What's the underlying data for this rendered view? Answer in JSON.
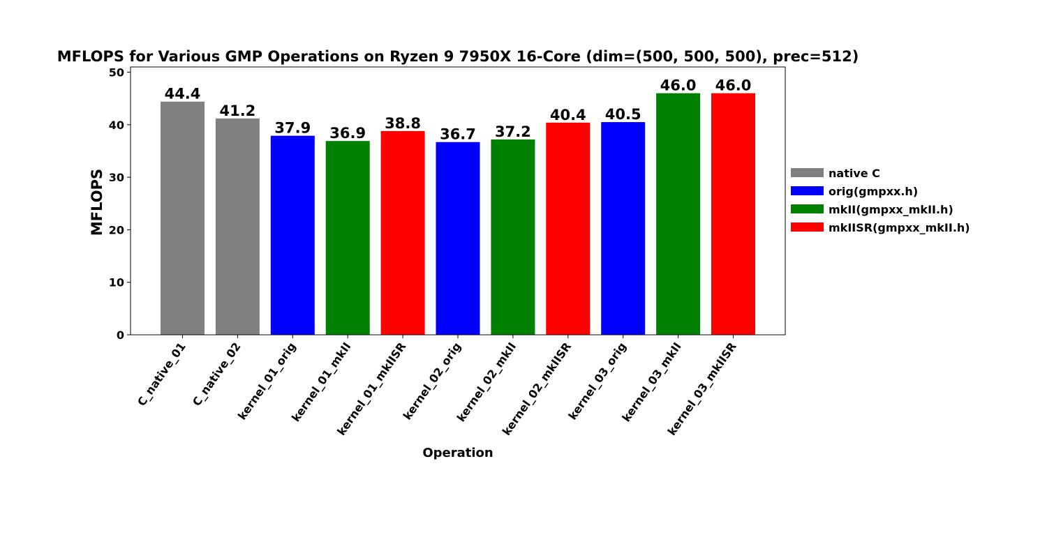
{
  "chart_data": {
    "type": "bar",
    "title": "MFLOPS for Various GMP Operations on Ryzen 9 7950X 16-Core (dim=(500, 500, 500), prec=512)",
    "xlabel": "Operation",
    "ylabel": "MFLOPS",
    "ylim": [
      0,
      51
    ],
    "yticks": [
      0,
      10,
      20,
      30,
      40,
      50
    ],
    "grid": false,
    "legend_position": "right",
    "categories": [
      "C_native_01",
      "C_native_02",
      "kernel_01_orig",
      "kernel_01_mkII",
      "kernel_01_mkIISR",
      "kernel_02_orig",
      "kernel_02_mkII",
      "kernel_02_mkIISR",
      "kernel_03_orig",
      "kernel_03_mkII",
      "kernel_03_mkIISR"
    ],
    "values": [
      44.4,
      41.2,
      37.9,
      36.9,
      38.8,
      36.7,
      37.2,
      40.4,
      40.5,
      46.0,
      46.0
    ],
    "value_labels": [
      "44.4",
      "41.2",
      "37.9",
      "36.9",
      "38.8",
      "36.7",
      "37.2",
      "40.4",
      "40.5",
      "46.0",
      "46.0"
    ],
    "bar_groups": [
      0,
      0,
      1,
      2,
      3,
      1,
      2,
      3,
      1,
      2,
      3
    ],
    "legend": [
      {
        "name": "native C",
        "color": "#808080"
      },
      {
        "name": "orig(gmpxx.h)",
        "color": "#0000ff"
      },
      {
        "name": "mkII(gmpxx_mkII.h)",
        "color": "#008000"
      },
      {
        "name": "mkIISR(gmpxx_mkII.h)",
        "color": "#ff0000"
      }
    ]
  }
}
